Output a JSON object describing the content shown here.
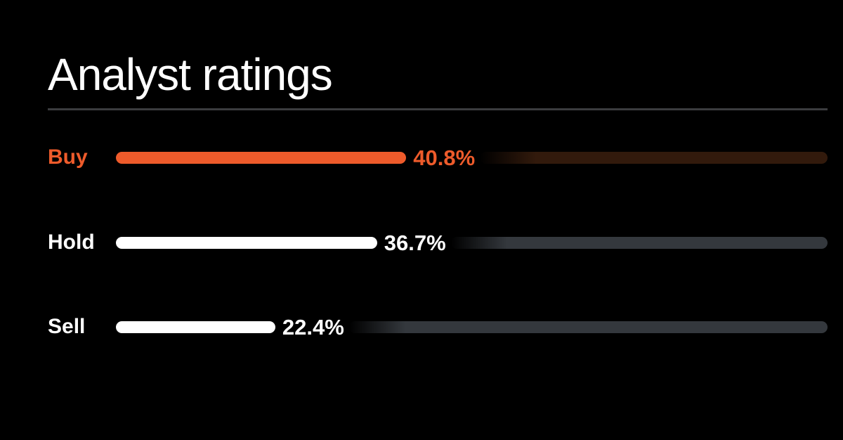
{
  "title": "Analyst ratings",
  "colors": {
    "background": "#000000",
    "divider": "#3b3c3f",
    "accent_orange": "#ee5b2b",
    "bar_white": "#ffffff",
    "track_gray": "#34383d",
    "track_orange_tint": "#321a0c"
  },
  "chart_data": {
    "type": "bar",
    "orientation": "horizontal",
    "title": "Analyst ratings",
    "xlabel": "",
    "ylabel": "",
    "xlim": [
      0,
      100
    ],
    "grid": false,
    "legend": false,
    "categories": [
      "Buy",
      "Hold",
      "Sell"
    ],
    "values": [
      40.8,
      36.7,
      22.4
    ],
    "rows": [
      {
        "label": "Buy",
        "value": 40.8,
        "value_label": "40.8%",
        "bar_color": "#ee5b2b",
        "label_color": "#ee5b2b",
        "value_color": "#ee5b2b",
        "track_color": "#321a0c"
      },
      {
        "label": "Hold",
        "value": 36.7,
        "value_label": "36.7%",
        "bar_color": "#ffffff",
        "label_color": "#ffffff",
        "value_color": "#ffffff",
        "track_color": "#34383d"
      },
      {
        "label": "Sell",
        "value": 22.4,
        "value_label": "22.4%",
        "bar_color": "#ffffff",
        "label_color": "#ffffff",
        "value_color": "#ffffff",
        "track_color": "#34383d"
      }
    ]
  }
}
